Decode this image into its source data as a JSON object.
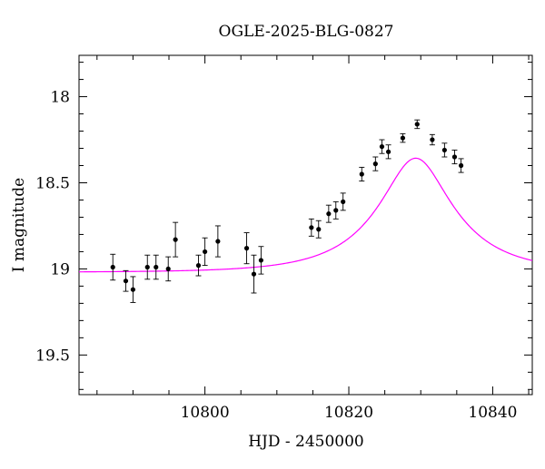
{
  "chart_data": {
    "type": "scatter",
    "title": "OGLE-2025-BLG-0827",
    "xlabel": "HJD - 2450000",
    "ylabel": "I magnitude",
    "xlim": [
      10782.5,
      10845.5
    ],
    "ylim": [
      19.73,
      17.76
    ],
    "y_inverted": true,
    "xticks": [
      10800,
      10820,
      10840
    ],
    "xtick_labels": [
      "10800",
      "10820",
      "10840"
    ],
    "yticks": [
      18,
      18.5,
      19,
      19.5
    ],
    "ytick_labels": [
      "18",
      "18.5",
      "19",
      "19.5"
    ],
    "x_minor_step": 5,
    "y_minor_step": 0.1,
    "grid": false,
    "series": [
      {
        "kind": "points_with_errorbars",
        "color": "#000000",
        "points": [
          {
            "x": 10787.2,
            "y": 18.99,
            "err": 0.075
          },
          {
            "x": 10789.0,
            "y": 19.07,
            "err": 0.06
          },
          {
            "x": 10790.0,
            "y": 19.12,
            "err": 0.075
          },
          {
            "x": 10792.0,
            "y": 18.99,
            "err": 0.07
          },
          {
            "x": 10793.2,
            "y": 18.99,
            "err": 0.07
          },
          {
            "x": 10794.9,
            "y": 19.0,
            "err": 0.07
          },
          {
            "x": 10795.9,
            "y": 18.83,
            "err": 0.1
          },
          {
            "x": 10799.1,
            "y": 18.98,
            "err": 0.06
          },
          {
            "x": 10800.0,
            "y": 18.9,
            "err": 0.08
          },
          {
            "x": 10801.8,
            "y": 18.84,
            "err": 0.09
          },
          {
            "x": 10805.8,
            "y": 18.88,
            "err": 0.09
          },
          {
            "x": 10806.8,
            "y": 19.03,
            "err": 0.11
          },
          {
            "x": 10807.8,
            "y": 18.95,
            "err": 0.08
          },
          {
            "x": 10814.8,
            "y": 18.76,
            "err": 0.05
          },
          {
            "x": 10815.8,
            "y": 18.77,
            "err": 0.05
          },
          {
            "x": 10817.2,
            "y": 18.68,
            "err": 0.05
          },
          {
            "x": 10818.2,
            "y": 18.66,
            "err": 0.05
          },
          {
            "x": 10819.2,
            "y": 18.61,
            "err": 0.05
          },
          {
            "x": 10821.8,
            "y": 18.45,
            "err": 0.04
          },
          {
            "x": 10823.7,
            "y": 18.39,
            "err": 0.04
          },
          {
            "x": 10824.6,
            "y": 18.29,
            "err": 0.04
          },
          {
            "x": 10825.5,
            "y": 18.32,
            "err": 0.04
          },
          {
            "x": 10827.5,
            "y": 18.24,
            "err": 0.025
          },
          {
            "x": 10829.5,
            "y": 18.16,
            "err": 0.025
          },
          {
            "x": 10831.6,
            "y": 18.25,
            "err": 0.03
          },
          {
            "x": 10833.3,
            "y": 18.31,
            "err": 0.04
          },
          {
            "x": 10834.7,
            "y": 18.35,
            "err": 0.04
          },
          {
            "x": 10835.6,
            "y": 18.4,
            "err": 0.04
          }
        ]
      },
      {
        "kind": "model_curve",
        "color": "#ff00ff",
        "model": {
          "t0": 10829.3,
          "tE": 11,
          "u0": 0.4,
          "I_source": 19.75,
          "I_base": 19.02
        }
      }
    ]
  }
}
